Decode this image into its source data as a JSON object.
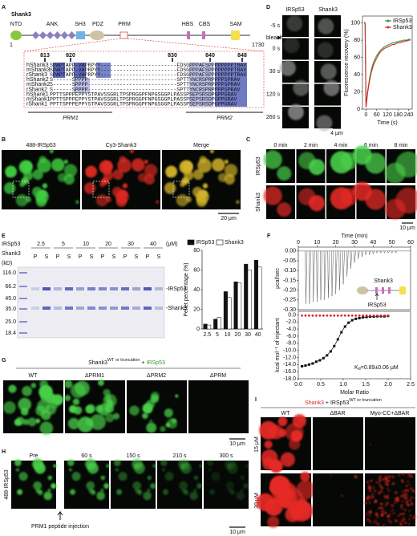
{
  "panel_labels": [
    "A",
    "B",
    "C",
    "D",
    "E",
    "F",
    "G",
    "H",
    "I"
  ],
  "panel_a": {
    "title": "Shank3",
    "domains": [
      "NTD",
      "ANK",
      "SH3",
      "PDZ",
      "PRM",
      "HBS",
      "CBS",
      "SAM"
    ],
    "start": "1",
    "end": "1730",
    "positions": [
      "813",
      "820",
      "830",
      "840",
      "848"
    ],
    "alignment": [
      {
        "name": "hShank3",
        "seq": "SPAPTAPP-VAPRPYY------------------------FDSGPPPAFSPPPPPPPPTRAV"
      },
      {
        "name": "mShank3",
        "seq": "SPAPTAPP-VAPRPYY------------------------FDSGPPPAFSPPPPPPPPTRAV"
      },
      {
        "name": "rShank3",
        "seq": "SPAPTAPP-VAPRPYY------------------------FDSGPPPAFSPPPPPPPPTRAV"
      },
      {
        "name": "hShank2",
        "seq": "S------SPPPP----------------------------SPTTYNCRSPRPPPPSPRAV"
      },
      {
        "name": "mShank2",
        "seq": "S------SPPPP----------------------------SPTTYNCRSPRPPPPSPRAV"
      },
      {
        "name": "rShank2",
        "seq": "S------SPPPP----------------------------SPTTYNCRSPRPPPPSPRAV"
      },
      {
        "name": "hShank1",
        "seq": "PPTTSPPPEPPYSTPAVSSGRLTPSPRGGPFNPGSGGPLPASSPSEPSRSDPGPPGRAV"
      },
      {
        "name": "mShank1",
        "seq": "PPTTSPPPEPPYSTPAVSSGRLTPSPRGGPFNPGSGGPLPASSPSEPSRSDPGPPGRAV"
      },
      {
        "name": "rShank1",
        "seq": "PPTTSPPPEPPYSTPAVSSGRLTPSPRGGPFNPGSGGPLPASSPSEPSRSDPGPPGRAV"
      }
    ],
    "motifs": [
      "PRM1",
      "PRM2"
    ]
  },
  "panel_b": {
    "channels": [
      "488-IRSp53",
      "Cy3-Shank3",
      "Merge"
    ],
    "scale": "20 μm"
  },
  "panel_c": {
    "times": [
      "0 min",
      "2 min",
      "4 min",
      "6 min",
      "8 min"
    ],
    "rows": [
      "IRSp53",
      "Shank3"
    ],
    "scale": "10 μm"
  },
  "panel_d": {
    "columns": [
      "IRSp53",
      "Shank3"
    ],
    "times": [
      "-5 s",
      "0 s",
      "30 s",
      "120 s",
      "260 s"
    ],
    "bleach": "bleach",
    "scale": "4 μm"
  },
  "panel_e": {
    "rows": [
      "IRSp53",
      "Shank3"
    ],
    "concentrations": [
      "2.5",
      "5",
      "10",
      "20",
      "30",
      "40"
    ],
    "unit": "(μM)",
    "kd_label": "(kD)",
    "markers": [
      "116.0",
      "66.2",
      "45.0",
      "35.0",
      "25.0",
      "18.4"
    ],
    "lanes": [
      "P",
      "S"
    ],
    "bands": [
      "-IRSp53",
      "-Shank3"
    ]
  },
  "panel_f": {
    "cartoon": [
      "Shank3",
      "IRSp53"
    ],
    "kd": "K",
    "kd_sub": "d",
    "kd_rest": "=0.89±0.06 μM"
  },
  "panel_g": {
    "protein": "Shank3",
    "superscript": "WT or truncation",
    "plus": "+",
    "partner": "IRSp53",
    "conditions": [
      "WT",
      "ΔPRM1",
      "ΔPRM2",
      "ΔPRM"
    ],
    "scale": "10 μm"
  },
  "panel_h": {
    "times": [
      "Pre",
      "60 s",
      "150 s",
      "210 s",
      "300 s"
    ],
    "row": "488-IRSp53",
    "injection": "PRM1 peptide injection",
    "scale": "10 μm"
  },
  "panel_i": {
    "protein": "Shank3",
    "plus": "+",
    "partner": "IRSp53",
    "superscript": "WT or truncation",
    "conditions": [
      "WT",
      "ΔBAR",
      "Myo-CC+ΔBAR"
    ],
    "rows": [
      "15 μM",
      "30 μM"
    ]
  },
  "chart_data": [
    {
      "type": "line",
      "xlabel": "Time (s)",
      "ylabel": "Fluorescence recovery (%)",
      "legend": "top-right",
      "x": [
        -10,
        -5,
        0,
        10,
        20,
        30,
        40,
        50,
        60,
        70,
        80,
        90,
        100,
        110,
        120,
        130,
        140,
        150,
        160,
        170,
        180,
        190,
        200,
        210,
        220,
        230,
        240,
        250
      ],
      "series": [
        {
          "name": "IRSp53",
          "color": "#2e9a3a",
          "values": [
            100,
            99,
            3,
            22,
            36,
            46,
            53,
            58,
            62,
            65,
            68,
            70,
            72,
            73,
            74,
            75,
            76,
            77,
            77,
            78,
            78,
            79,
            79,
            80,
            80,
            80,
            81,
            81
          ]
        },
        {
          "name": "Shank3",
          "color": "#d9262b",
          "values": [
            101,
            100,
            2,
            20,
            33,
            43,
            50,
            55,
            59,
            63,
            66,
            68,
            70,
            71,
            72,
            73,
            74,
            75,
            75,
            76,
            77,
            77,
            78,
            78,
            79,
            79,
            80,
            80
          ]
        }
      ],
      "xlim": [
        -20,
        260
      ],
      "xticks": [
        0,
        60,
        120,
        180,
        240
      ],
      "ylim": [
        0,
        108
      ],
      "yticks": [
        0,
        20,
        40,
        60,
        80,
        100
      ]
    },
    {
      "type": "bar",
      "ylabel": "Pellet percentage (%)",
      "legend": "top",
      "categories": [
        "2.5",
        "5",
        "10",
        "20",
        "30",
        "40"
      ],
      "series": [
        {
          "name": "IRSp53",
          "color": "#111111",
          "values": [
            5,
            10,
            38,
            48,
            66,
            70
          ]
        },
        {
          "name": "Shank3",
          "color": "#ffffff",
          "values": [
            4,
            12,
            32,
            47,
            60,
            63
          ]
        }
      ],
      "ylim": [
        0,
        80
      ],
      "yticks": [
        0,
        20,
        40,
        60,
        80
      ]
    },
    {
      "type": "stem",
      "xlabel": "Time (min)",
      "ylabel": "μcal/sec",
      "color": "#555555",
      "x": [
        4,
        6,
        8,
        10,
        12,
        14,
        16,
        18,
        20,
        22,
        24,
        26,
        28,
        30,
        32,
        34,
        36,
        38,
        40,
        42,
        44,
        46,
        48,
        50,
        52
      ],
      "values": [
        -0.27,
        -0.27,
        -0.26,
        -0.26,
        -0.25,
        -0.25,
        -0.24,
        -0.23,
        -0.22,
        -0.2,
        -0.17,
        -0.13,
        -0.09,
        -0.06,
        -0.04,
        -0.03,
        -0.02,
        -0.02,
        -0.015,
        -0.01,
        -0.01,
        -0.01,
        -0.01,
        -0.01,
        -0.01
      ],
      "xlim": [
        0,
        60
      ],
      "xticks": [
        0,
        10,
        20,
        30,
        40,
        50,
        60
      ],
      "ylim": [
        -0.3,
        0.02
      ],
      "yticks": [
        {
          "value": 0,
          "label": "0.00"
        },
        {
          "value": -0.05,
          "label": "-0.05"
        },
        {
          "value": -0.1,
          "label": "-0.10"
        },
        {
          "value": -0.15,
          "label": "-0.15"
        },
        {
          "value": -0.2,
          "label": "-0.20"
        },
        {
          "value": -0.25,
          "label": "-0.25"
        },
        {
          "value": -0.3,
          "label": "-0.30"
        }
      ]
    },
    {
      "type": "scatter",
      "xlabel": "Molar Ratio",
      "ylabel": "kcal mol⁻¹ of injectant",
      "x": [
        0.08,
        0.16,
        0.24,
        0.32,
        0.4,
        0.48,
        0.56,
        0.64,
        0.72,
        0.8,
        0.88,
        0.96,
        1.04,
        1.12,
        1.2,
        1.28,
        1.36,
        1.44,
        1.52,
        1.6,
        1.68,
        1.76,
        1.84,
        1.92,
        2.0
      ],
      "series": [
        {
          "color": "#111111",
          "values": [
            -14.5,
            -14.3,
            -14,
            -13.7,
            -13.2,
            -12.8,
            -12.2,
            -11.4,
            -10.3,
            -8.8,
            -6.9,
            -4.9,
            -3.3,
            -2.2,
            -1.5,
            -1.1,
            -0.9,
            -0.7,
            -0.6,
            -0.5,
            -0.5,
            -0.4,
            -0.4,
            -0.4,
            -0.3
          ]
        },
        {
          "color": "#d9262b",
          "values": [
            -0.2,
            -0.2,
            -0.2,
            -0.2,
            -0.2,
            -0.2,
            -0.2,
            -0.2,
            -0.2,
            -0.2,
            -0.2,
            -0.2,
            -0.2,
            -0.2,
            -0.2,
            -0.2,
            -0.2,
            -0.2,
            -0.2,
            -0.2,
            -0.2,
            -0.2,
            -0.2,
            -0.2,
            -0.2
          ]
        }
      ],
      "xlim": [
        0,
        2.5
      ],
      "xticks": [
        {
          "value": 0,
          "label": "0.0"
        },
        {
          "value": 0.5,
          "label": "0.5"
        },
        {
          "value": 1,
          "label": "1.0"
        },
        {
          "value": 1.5,
          "label": "1.5"
        },
        {
          "value": 2,
          "label": "2.0"
        },
        {
          "value": 2.5,
          "label": "2.5"
        }
      ],
      "ylim": [
        -18,
        1
      ],
      "yticks": [
        {
          "value": 0,
          "label": "0.0"
        },
        {
          "value": -2,
          "label": "-2.0"
        },
        {
          "value": -4,
          "label": "-4.0"
        },
        {
          "value": -6,
          "label": "-6.0"
        },
        {
          "value": -8,
          "label": "-8.0"
        },
        {
          "value": -10,
          "label": "-10.0"
        },
        {
          "value": -12,
          "label": "-12.0"
        },
        {
          "value": -14,
          "label": "-14.0"
        },
        {
          "value": -16,
          "label": "-16.0"
        },
        {
          "value": -18,
          "label": "-18.0"
        }
      ]
    }
  ]
}
